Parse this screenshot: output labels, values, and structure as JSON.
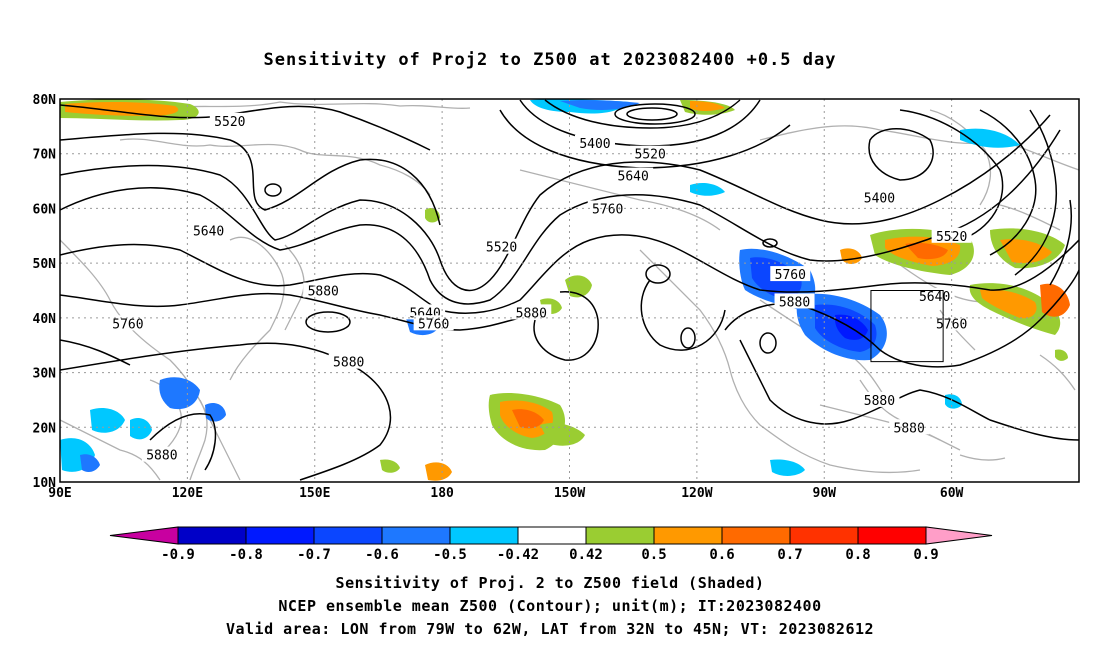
{
  "title": "Sensitivity of Proj2 to Z500 at 2023082400 +0.5 day",
  "map": {
    "lon_labels": [
      "90E",
      "120E",
      "150E",
      "180",
      "150W",
      "120W",
      "90W",
      "60W"
    ],
    "lat_labels": [
      "10N",
      "20N",
      "30N",
      "40N",
      "50N",
      "60N",
      "70N",
      "80N"
    ],
    "lon_range": [
      90,
      330
    ],
    "lat_range": [
      10,
      80
    ],
    "valid_box": {
      "lon": [
        281,
        298
      ],
      "lat": [
        32,
        45
      ]
    },
    "contour_labels": [
      {
        "text": "5520",
        "lon": 130,
        "lat": 76
      },
      {
        "text": "5400",
        "lon": 216,
        "lat": 72
      },
      {
        "text": "5520",
        "lon": 229,
        "lat": 70
      },
      {
        "text": "5640",
        "lon": 225,
        "lat": 66
      },
      {
        "text": "5760",
        "lon": 219,
        "lat": 60
      },
      {
        "text": "5640",
        "lon": 125,
        "lat": 56
      },
      {
        "text": "5520",
        "lon": 194,
        "lat": 53
      },
      {
        "text": "5400",
        "lon": 283,
        "lat": 62
      },
      {
        "text": "5520",
        "lon": 300,
        "lat": 55
      },
      {
        "text": "5760",
        "lon": 262,
        "lat": 48
      },
      {
        "text": "5880",
        "lon": 152,
        "lat": 45
      },
      {
        "text": "5880",
        "lon": 263,
        "lat": 43
      },
      {
        "text": "5640",
        "lon": 296,
        "lat": 44
      },
      {
        "text": "5640",
        "lon": 176,
        "lat": 41
      },
      {
        "text": "5760",
        "lon": 178,
        "lat": 39
      },
      {
        "text": "5880",
        "lon": 201,
        "lat": 41
      },
      {
        "text": "5760",
        "lon": 300,
        "lat": 39
      },
      {
        "text": "5760",
        "lon": 106,
        "lat": 39
      },
      {
        "text": "5880",
        "lon": 158,
        "lat": 32
      },
      {
        "text": "5880",
        "lon": 283,
        "lat": 25
      },
      {
        "text": "5880",
        "lon": 290,
        "lat": 20
      },
      {
        "text": "5880",
        "lon": 114,
        "lat": 15
      }
    ]
  },
  "colorbar": {
    "ticks": [
      "-0.9",
      "-0.8",
      "-0.7",
      "-0.6",
      "-0.5",
      "-0.42",
      "0.42",
      "0.5",
      "0.6",
      "0.7",
      "0.8",
      "0.9"
    ],
    "colors": [
      "#c800a0",
      "#0000c8",
      "#0019ff",
      "#0b46ff",
      "#1e78ff",
      "#00c8ff",
      "#ffffff",
      "#9acd32",
      "#ff9900",
      "#ff6a00",
      "#ff3200",
      "#ff0000",
      "#ff9ec8"
    ]
  },
  "captions": [
    "Sensitivity of Proj. 2 to Z500 field (Shaded)",
    "NCEP ensemble mean Z500 (Contour); unit(m); IT:2023082400",
    "Valid area: LON from 79W to 62W, LAT from 32N to 45N; VT: 2023082612"
  ]
}
